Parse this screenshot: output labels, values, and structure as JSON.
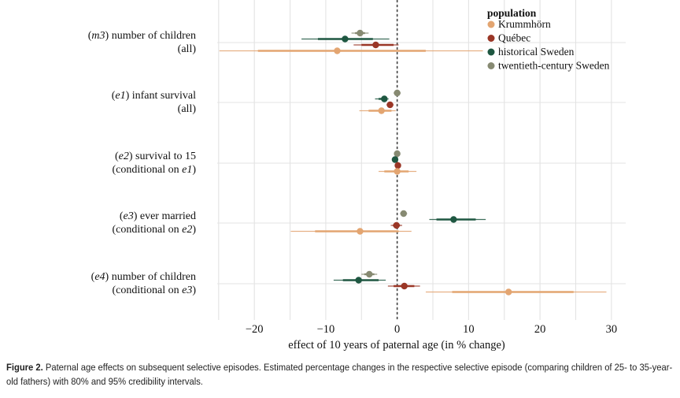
{
  "chart_data": {
    "type": "forest",
    "xlabel": "effect of 10 years of paternal age (in % change)",
    "xlim": [
      -25.2,
      32
    ],
    "xticks": [
      -20,
      -10,
      0,
      10,
      20,
      30
    ],
    "xtick_labels": [
      "−20",
      "−10",
      "0",
      "10",
      "20",
      "30"
    ],
    "reference_line": 0,
    "grid": true,
    "legend": {
      "title": "population",
      "placement": "top-right",
      "entries": [
        "Krummhörn",
        "Québec",
        "historical Sweden",
        "twentieth-century Sweden"
      ]
    },
    "series_colors": {
      "Krummhörn": "#e3a571",
      "Québec": "#9a3626",
      "historical Sweden": "#1e5741",
      "twentieth-century Sweden": "#878a72"
    },
    "categories": [
      {
        "line1": [
          {
            "t": "(",
            "i": false
          },
          {
            "t": "m3",
            "i": true
          },
          {
            "t": ") number of children",
            "i": false
          }
        ],
        "line2": [
          {
            "t": "(all)",
            "i": false
          }
        ]
      },
      {
        "line1": [
          {
            "t": "(",
            "i": false
          },
          {
            "t": "e1",
            "i": true
          },
          {
            "t": ") infant survival",
            "i": false
          }
        ],
        "line2": [
          {
            "t": "(all)",
            "i": false
          }
        ]
      },
      {
        "line1": [
          {
            "t": "(",
            "i": false
          },
          {
            "t": "e2",
            "i": true
          },
          {
            "t": ") survival to 15",
            "i": false
          }
        ],
        "line2": [
          {
            "t": "(conditional on ",
            "i": false
          },
          {
            "t": "e1",
            "i": true
          },
          {
            "t": ")",
            "i": false
          }
        ]
      },
      {
        "line1": [
          {
            "t": "(",
            "i": false
          },
          {
            "t": "e3",
            "i": true
          },
          {
            "t": ") ever married",
            "i": false
          }
        ],
        "line2": [
          {
            "t": "(conditional on ",
            "i": false
          },
          {
            "t": "e2",
            "i": true
          },
          {
            "t": ")",
            "i": false
          }
        ]
      },
      {
        "line1": [
          {
            "t": "(",
            "i": false
          },
          {
            "t": "e4",
            "i": true
          },
          {
            "t": ") number of children",
            "i": false
          }
        ],
        "line2": [
          {
            "t": "(conditional on ",
            "i": false
          },
          {
            "t": "e3",
            "i": true
          },
          {
            "t": ")",
            "i": false
          }
        ]
      }
    ],
    "series": [
      {
        "name": "twentieth-century Sweden",
        "estimates": [
          {
            "est": -5.2,
            "ci80": [
              -5.9,
              -4.5
            ],
            "ci95": [
              -6.4,
              -4.0
            ]
          },
          {
            "est": 0.0,
            "ci80": [
              -0.3,
              0.3
            ],
            "ci95": [
              -0.5,
              0.5
            ]
          },
          {
            "est": 0.0,
            "ci80": [
              -0.2,
              0.2
            ],
            "ci95": [
              -0.3,
              0.3
            ]
          },
          {
            "est": 0.9,
            "ci80": [
              0.6,
              1.2
            ],
            "ci95": [
              0.4,
              1.4
            ]
          },
          {
            "est": -3.9,
            "ci80": [
              -4.6,
              -3.2
            ],
            "ci95": [
              -5.0,
              -2.8
            ]
          }
        ]
      },
      {
        "name": "historical Sweden",
        "estimates": [
          {
            "est": -7.3,
            "ci80": [
              -11.1,
              -3.4
            ],
            "ci95": [
              -13.4,
              -1.1
            ]
          },
          {
            "est": -1.8,
            "ci80": [
              -2.6,
              -1.4
            ],
            "ci95": [
              -3.1,
              -1.2
            ]
          },
          {
            "est": -0.3,
            "ci80": [
              -0.5,
              -0.1
            ],
            "ci95": [
              -0.6,
              0.0
            ]
          },
          {
            "est": 7.9,
            "ci80": [
              5.5,
              11.0
            ],
            "ci95": [
              4.5,
              12.4
            ]
          },
          {
            "est": -5.4,
            "ci80": [
              -7.6,
              -2.6
            ],
            "ci95": [
              -8.9,
              -1.6
            ]
          }
        ]
      },
      {
        "name": "Québec",
        "estimates": [
          {
            "est": -3.0,
            "ci80": [
              -5.0,
              -0.5
            ],
            "ci95": [
              -6.1,
              0.2
            ]
          },
          {
            "est": -1.0,
            "ci80": [
              -1.3,
              -0.7
            ],
            "ci95": [
              -1.5,
              -0.5
            ]
          },
          {
            "est": 0.1,
            "ci80": [
              -0.1,
              0.3
            ],
            "ci95": [
              -0.2,
              0.4
            ]
          },
          {
            "est": -0.1,
            "ci80": [
              -0.6,
              0.4
            ],
            "ci95": [
              -0.9,
              0.7
            ]
          },
          {
            "est": 1.0,
            "ci80": [
              -0.5,
              2.4
            ],
            "ci95": [
              -1.3,
              3.2
            ]
          }
        ]
      },
      {
        "name": "Krummhörn",
        "estimates": [
          {
            "est": -8.4,
            "ci80": [
              -19.5,
              4.0
            ],
            "ci95": [
              -24.9,
              12.0
            ]
          },
          {
            "est": -2.2,
            "ci80": [
              -4.0,
              -0.8
            ],
            "ci95": [
              -5.3,
              -0.2
            ]
          },
          {
            "est": 0.0,
            "ci80": [
              -1.8,
              1.6
            ],
            "ci95": [
              -2.6,
              2.7
            ]
          },
          {
            "est": -5.2,
            "ci80": [
              -11.5,
              0.2
            ],
            "ci95": [
              -14.9,
              2.0
            ]
          },
          {
            "est": 15.6,
            "ci80": [
              7.7,
              24.7
            ],
            "ci95": [
              4.0,
              29.3
            ]
          }
        ]
      }
    ]
  },
  "caption": {
    "label": "Figure 2.",
    "text": " Paternal age effects on subsequent selective episodes. Estimated percentage changes in the respective selective episode (comparing children of 25- to 35-year-old fathers) with 80% and 95% credibility intervals."
  }
}
